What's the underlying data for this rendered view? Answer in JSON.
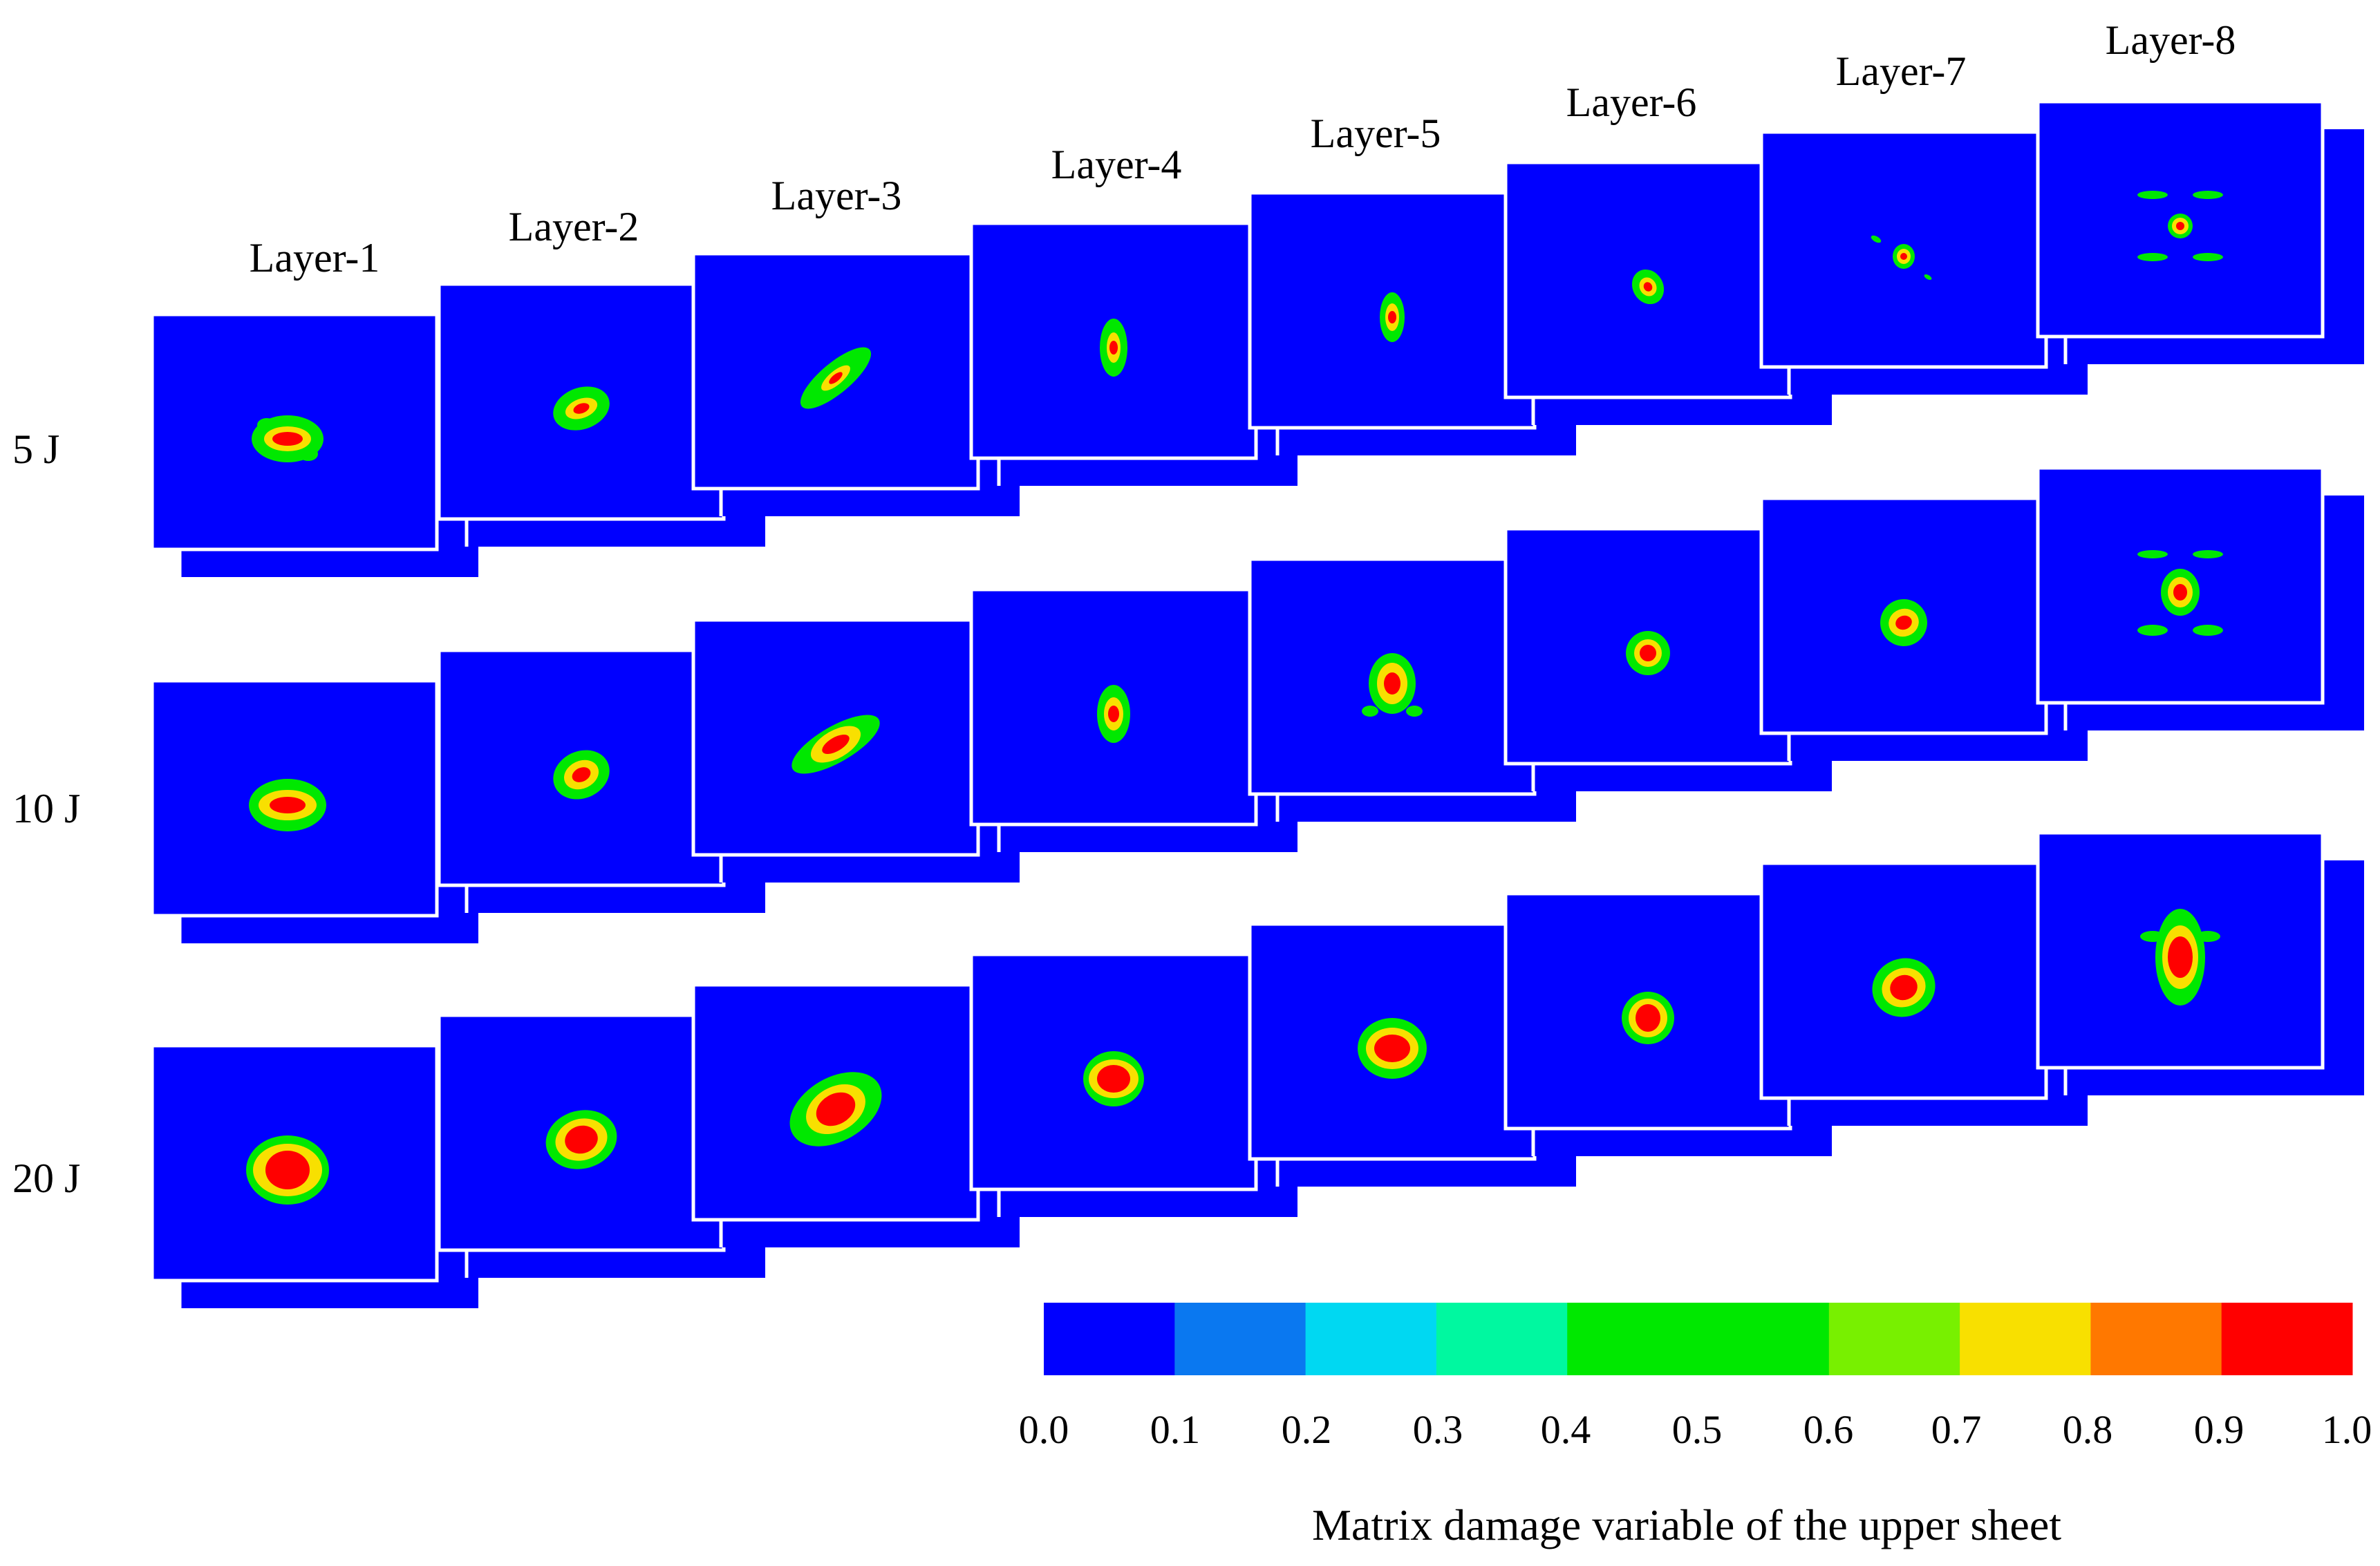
{
  "figure": {
    "column_labels": [
      "Layer-1",
      "Layer-2",
      "Layer-3",
      "Layer-4",
      "Layer-5",
      "Layer-6",
      "Layer-7",
      "Layer-8"
    ],
    "row_labels": [
      "5 J",
      "10 J",
      "20 J"
    ],
    "panel_background_color": "#0000ff",
    "colorbar": {
      "title": "Matrix damage variable of the upper sheet",
      "ticks": [
        "0.0",
        "0.1",
        "0.2",
        "0.3",
        "0.4",
        "0.5",
        "0.6",
        "0.7",
        "0.8",
        "0.9",
        "1.0"
      ],
      "bins": [
        {
          "range": [
            0.0,
            0.1
          ],
          "color": "#0000ff"
        },
        {
          "range": [
            0.1,
            0.2
          ],
          "color": "#0a78f0"
        },
        {
          "range": [
            0.2,
            0.3
          ],
          "color": "#00d8f2"
        },
        {
          "range": [
            0.3,
            0.4
          ],
          "color": "#00f8a0"
        },
        {
          "range": [
            0.4,
            0.6
          ],
          "color": "#00e800"
        },
        {
          "range": [
            0.6,
            0.7
          ],
          "color": "#78f000"
        },
        {
          "range": [
            0.7,
            0.8
          ],
          "color": "#f8e000"
        },
        {
          "range": [
            0.8,
            0.9
          ],
          "color": "#ff7800"
        },
        {
          "range": [
            0.9,
            1.0
          ],
          "color": "#ff0000"
        }
      ]
    }
  }
}
